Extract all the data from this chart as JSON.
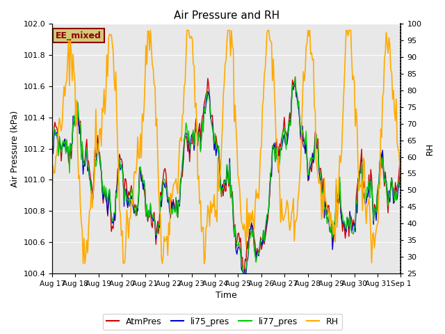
{
  "title": "Air Pressure and RH",
  "ylabel_left": "Air Pressure (kPa)",
  "ylabel_right": "RH",
  "xlabel": "Time",
  "annotation_text": "EE_mixed",
  "annotation_color": "#8B0000",
  "annotation_bg": "#d4c97a",
  "ylim_left": [
    100.4,
    102.0
  ],
  "ylim_right": [
    25,
    100
  ],
  "yticks_left": [
    100.4,
    100.6,
    100.8,
    101.0,
    101.2,
    101.4,
    101.6,
    101.8,
    102.0
  ],
  "yticks_right": [
    25,
    30,
    35,
    40,
    45,
    50,
    55,
    60,
    65,
    70,
    75,
    80,
    85,
    90,
    95,
    100
  ],
  "xtick_labels": [
    "Aug 17",
    "Aug 18",
    "Aug 19",
    "Aug 20",
    "Aug 21",
    "Aug 22",
    "Aug 23",
    "Aug 24",
    "Aug 25",
    "Aug 26",
    "Aug 27",
    "Aug 28",
    "Aug 29",
    "Aug 30",
    "Aug 31",
    "Sep 1"
  ],
  "colors": {
    "AtmPres": "#cc0000",
    "li75_pres": "#0000cc",
    "li77_pres": "#00cc00",
    "RH": "#ffaa00"
  },
  "plot_bg": "#e8e8e8",
  "grid_color": "white",
  "figsize": [
    6.4,
    4.8
  ],
  "dpi": 100
}
